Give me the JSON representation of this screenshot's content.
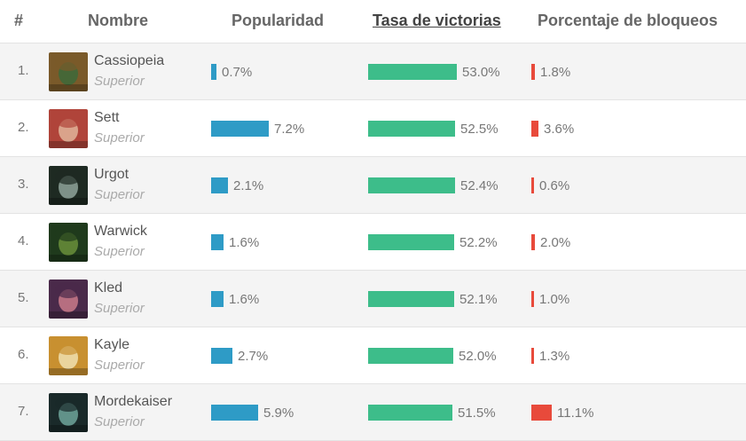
{
  "headers": {
    "rank": "#",
    "name": "Nombre",
    "popularity": "Popularidad",
    "winrate": "Tasa de victorias",
    "banrate": "Porcentaje de bloqueos"
  },
  "rows": [
    {
      "rank": "1.",
      "name": "Cassiopeia",
      "tier": "Superior",
      "popularity": "0.7%",
      "winrate": "53.0%",
      "banrate": "1.8%",
      "portrait_color": "#7a5a2a",
      "portrait_accent": "#3d6a3a"
    },
    {
      "rank": "2.",
      "name": "Sett",
      "tier": "Superior",
      "popularity": "7.2%",
      "winrate": "52.5%",
      "banrate": "3.6%",
      "portrait_color": "#b0443a",
      "portrait_accent": "#e2b49a"
    },
    {
      "rank": "3.",
      "name": "Urgot",
      "tier": "Superior",
      "popularity": "2.1%",
      "winrate": "52.4%",
      "banrate": "0.6%",
      "portrait_color": "#1e2a22",
      "portrait_accent": "#8fa39a"
    },
    {
      "rank": "4.",
      "name": "Warwick",
      "tier": "Superior",
      "popularity": "1.6%",
      "winrate": "52.2%",
      "banrate": "2.0%",
      "portrait_color": "#1f3a1c",
      "portrait_accent": "#6a8f3a"
    },
    {
      "rank": "5.",
      "name": "Kled",
      "tier": "Superior",
      "popularity": "1.6%",
      "winrate": "52.1%",
      "banrate": "1.0%",
      "portrait_color": "#4a2a4a",
      "portrait_accent": "#c97a8a"
    },
    {
      "rank": "6.",
      "name": "Kayle",
      "tier": "Superior",
      "popularity": "2.7%",
      "winrate": "52.0%",
      "banrate": "1.3%",
      "portrait_color": "#c89030",
      "portrait_accent": "#f0e0b0"
    },
    {
      "rank": "7.",
      "name": "Mordekaiser",
      "tier": "Superior",
      "popularity": "5.9%",
      "winrate": "51.5%",
      "banrate": "11.1%",
      "portrait_color": "#1a2a2a",
      "portrait_accent": "#6fa59a"
    }
  ],
  "colors": {
    "popularity_bar": "#2e9bc6",
    "winrate_bar": "#3dbd8a",
    "banrate_bar": "#e84a3b"
  }
}
